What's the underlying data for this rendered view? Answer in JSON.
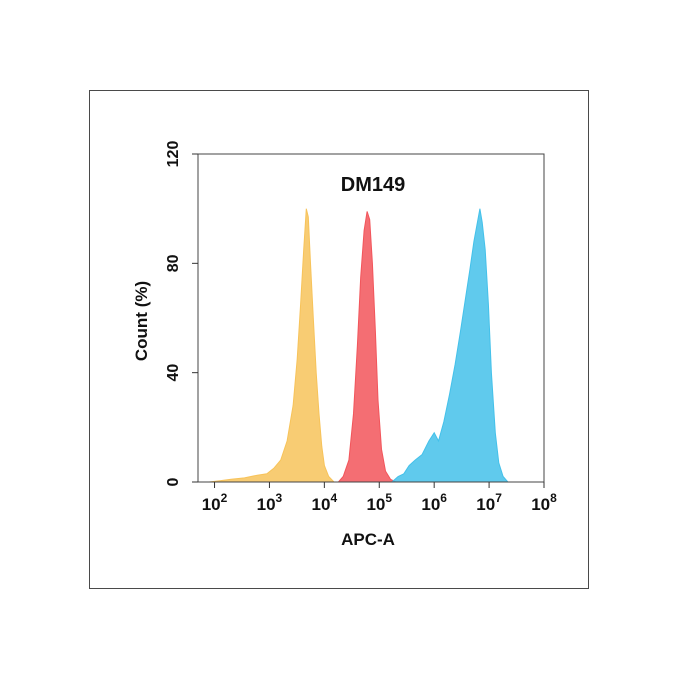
{
  "chart_data": {
    "type": "area",
    "title": "DM149",
    "xlabel": "APC-A",
    "ylabel": "Count  (%)",
    "x_scale": "log",
    "xlim": [
      50,
      100000000
    ],
    "ylim": [
      0,
      120
    ],
    "x_ticks": [
      {
        "value": 100,
        "base": "10",
        "exp": "2"
      },
      {
        "value": 1000,
        "base": "10",
        "exp": "3"
      },
      {
        "value": 10000,
        "base": "10",
        "exp": "4"
      },
      {
        "value": 100000,
        "base": "10",
        "exp": "5"
      },
      {
        "value": 1000000,
        "base": "10",
        "exp": "6"
      },
      {
        "value": 10000000,
        "base": "10",
        "exp": "7"
      },
      {
        "value": 100000000,
        "base": "10",
        "exp": "8"
      }
    ],
    "y_ticks": [
      {
        "value": 0,
        "label": "0"
      },
      {
        "value": 40,
        "label": "40"
      },
      {
        "value": 80,
        "label": "80"
      },
      {
        "value": 120,
        "label": "120"
      }
    ],
    "grid": false,
    "legend": "none",
    "series": [
      {
        "color": "#f7c35a",
        "points": [
          [
            80,
            0
          ],
          [
            130,
            0.5
          ],
          [
            200,
            1
          ],
          [
            350,
            1.5
          ],
          [
            600,
            2.5
          ],
          [
            900,
            3
          ],
          [
            1200,
            5
          ],
          [
            1600,
            8
          ],
          [
            2100,
            15
          ],
          [
            2700,
            28
          ],
          [
            3200,
            45
          ],
          [
            3700,
            65
          ],
          [
            4200,
            85
          ],
          [
            4700,
            100
          ],
          [
            5100,
            97
          ],
          [
            5600,
            80
          ],
          [
            6300,
            60
          ],
          [
            7100,
            40
          ],
          [
            8000,
            25
          ],
          [
            9000,
            13
          ],
          [
            10000,
            6
          ],
          [
            12000,
            2
          ],
          [
            15000,
            0
          ]
        ]
      },
      {
        "color": "#f2555b",
        "points": [
          [
            18000,
            0
          ],
          [
            22000,
            2
          ],
          [
            28000,
            8
          ],
          [
            34000,
            25
          ],
          [
            40000,
            50
          ],
          [
            46000,
            75
          ],
          [
            53000,
            92
          ],
          [
            60000,
            99
          ],
          [
            67000,
            96
          ],
          [
            75000,
            80
          ],
          [
            85000,
            55
          ],
          [
            95000,
            30
          ],
          [
            110000,
            12
          ],
          [
            130000,
            4
          ],
          [
            160000,
            1
          ],
          [
            200000,
            0
          ]
        ]
      },
      {
        "color": "#44c1ea",
        "points": [
          [
            170000,
            0
          ],
          [
            220000,
            2
          ],
          [
            280000,
            3
          ],
          [
            350000,
            6
          ],
          [
            450000,
            8
          ],
          [
            600000,
            10
          ],
          [
            800000,
            15
          ],
          [
            1000000,
            18
          ],
          [
            1200000,
            15
          ],
          [
            1500000,
            22
          ],
          [
            1900000,
            32
          ],
          [
            2400000,
            43
          ],
          [
            3000000,
            55
          ],
          [
            3700000,
            67
          ],
          [
            4500000,
            78
          ],
          [
            5300000,
            88
          ],
          [
            6000000,
            94
          ],
          [
            6800000,
            100
          ],
          [
            7500000,
            95
          ],
          [
            8500000,
            85
          ],
          [
            9700000,
            65
          ],
          [
            11000000,
            40
          ],
          [
            13000000,
            18
          ],
          [
            15000000,
            7
          ],
          [
            18000000,
            2
          ],
          [
            22000000,
            0
          ]
        ]
      }
    ]
  }
}
